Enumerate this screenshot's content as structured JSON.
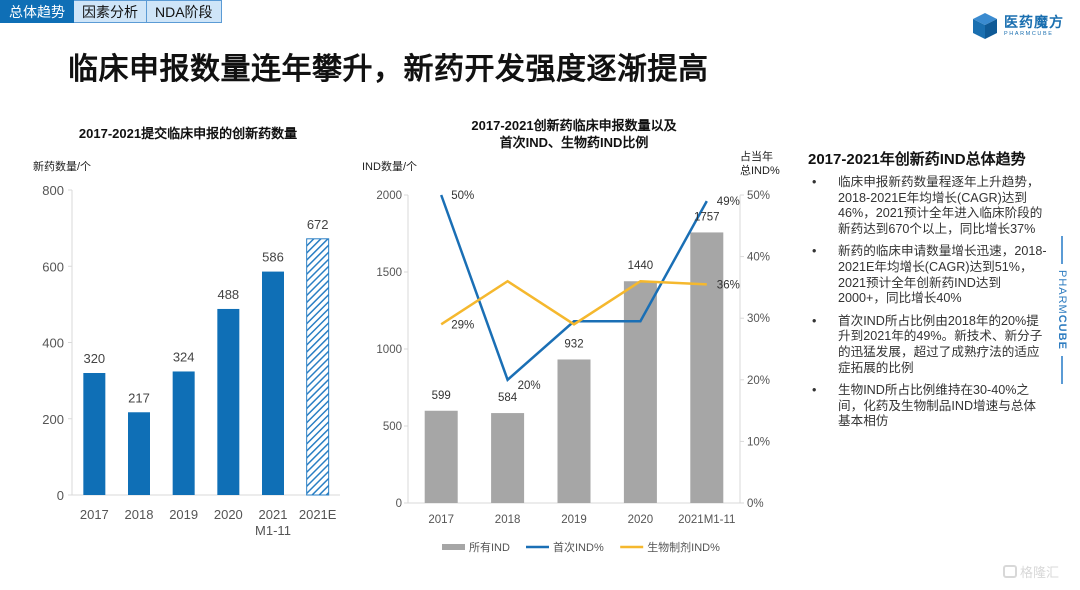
{
  "tabs": [
    {
      "label": "总体趋势",
      "active": true
    },
    {
      "label": "因素分析",
      "active": false
    },
    {
      "label": "NDA阶段",
      "active": false
    }
  ],
  "logo": {
    "cn": "医药魔方",
    "en": "PHARMCUBE",
    "icon": "cube-logo-icon"
  },
  "page_title": "临床申报数量连年攀升，新药开发强度逐渐提高",
  "colors": {
    "primary_blue": "#0f6fb6",
    "bar_gray": "#a6a6a6",
    "line_blue": "#1a6fb5",
    "line_yellow": "#f5b82e",
    "axis": "#d9d9d9"
  },
  "chart_data": [
    {
      "type": "bar",
      "title": "2017-2021提交临床申报的创新药数量",
      "ylabel": "新药数量/个",
      "xlabel": "",
      "categories": [
        "2017",
        "2018",
        "2019",
        "2020",
        "2021\nM1-11",
        "2021E"
      ],
      "category_lines": [
        [
          "2017"
        ],
        [
          "2018"
        ],
        [
          "2019"
        ],
        [
          "2020"
        ],
        [
          "2021",
          "M1-11"
        ],
        [
          "2021E"
        ]
      ],
      "values": [
        320,
        217,
        324,
        488,
        586,
        672
      ],
      "data_labels": [
        "320",
        "217",
        "324",
        "488",
        "586",
        "672"
      ],
      "estimated": [
        false,
        false,
        false,
        false,
        false,
        true
      ],
      "ylim": [
        0,
        800
      ],
      "yticks": [
        0,
        200,
        400,
        600,
        800
      ],
      "grid": false,
      "legend": "none"
    },
    {
      "type": "bar",
      "title_lines": [
        "2017-2021创新药临床申报数量以及",
        "首次IND、生物药IND比例"
      ],
      "ylabel": "IND数量/个",
      "y2label_lines": [
        "占当年",
        "总IND%"
      ],
      "categories": [
        "2017",
        "2018",
        "2019",
        "2020",
        "2021M1-11"
      ],
      "ylim": [
        0,
        2000
      ],
      "yticks": [
        0,
        500,
        1000,
        1500,
        2000
      ],
      "y2lim": [
        0,
        50
      ],
      "y2ticks": [
        "0%",
        "10%",
        "20%",
        "30%",
        "40%",
        "50%"
      ],
      "y2tick_values": [
        0,
        10,
        20,
        30,
        40,
        50
      ],
      "grid": false,
      "legend": "bottom",
      "series": [
        {
          "name": "所有IND",
          "type": "bar",
          "axis": "left",
          "values": [
            599,
            584,
            932,
            1440,
            1757
          ],
          "data_labels": [
            "599",
            "584",
            "932",
            "1440",
            "1757"
          ]
        },
        {
          "name": "首次IND%",
          "type": "line",
          "axis": "right",
          "values": [
            50,
            20,
            29.5,
            29.5,
            49
          ],
          "data_labels": [
            "50%",
            "20%",
            "",
            "",
            "49%"
          ]
        },
        {
          "name": "生物制剂IND%",
          "type": "line",
          "axis": "right",
          "values": [
            29,
            36,
            29,
            36,
            35.5
          ],
          "data_labels": [
            "29%",
            "",
            "",
            "",
            "36%"
          ]
        }
      ]
    }
  ],
  "side_panel": {
    "title": "2017-2021年创新药IND总体趋势",
    "bullet_symbol": "•",
    "bullets": [
      "临床申报新药数量程逐年上升趋势，2018-2021E年均增长(CAGR)达到46%，2021预计全年进入临床阶段的新药达到670个以上，同比增长37%",
      "新药的临床申请数量增长迅速，2018-2021E年均增长(CAGR)达到51%，2021预计全年创新药IND达到2000+，同比增长40%",
      "首次IND所占比例由2018年的20%提升到2021年的49%。新技术、新分子的迅猛发展，超过了成熟疗法的适应症拓展的比例",
      "生物IND所占比例维持在30-40%之间，化药及生物制品IND增速与总体基本相仿"
    ]
  },
  "brand_vertical": {
    "light": "PHARM",
    "bold": "CUBE"
  },
  "watermark": "格隆汇"
}
